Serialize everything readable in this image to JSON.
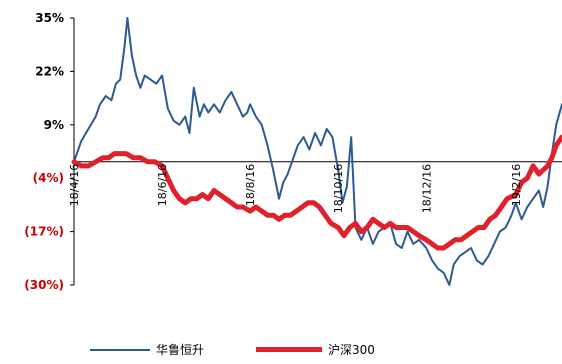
{
  "chart_data": {
    "type": "line",
    "title": "",
    "xlabel": "",
    "ylabel": "",
    "ylim": [
      -30,
      35
    ],
    "yticks": [
      {
        "value": 35,
        "label": "35%",
        "color": "#000000"
      },
      {
        "value": 22,
        "label": "22%",
        "color": "#000000"
      },
      {
        "value": 9,
        "label": "9%",
        "color": "#000000"
      },
      {
        "value": -4,
        "label": "(4%)",
        "color": "#cc0000"
      },
      {
        "value": -17,
        "label": "(17%)",
        "color": "#cc0000"
      },
      {
        "value": -30,
        "label": "(30%)",
        "color": "#cc0000"
      }
    ],
    "xticks": [
      {
        "date": "2018-04-16",
        "label": "18/4/16"
      },
      {
        "date": "2018-06-16",
        "label": "18/6/16"
      },
      {
        "date": "2018-08-16",
        "label": "18/8/16"
      },
      {
        "date": "2018-10-16",
        "label": "18/10/16"
      },
      {
        "date": "2018-12-16",
        "label": "18/12/16"
      },
      {
        "date": "2019-02-16",
        "label": "19/2/16"
      }
    ],
    "xlim": [
      "2018-04-16",
      "2019-03-20"
    ],
    "baseline": 0,
    "grid": false,
    "legend_position": "bottom",
    "series": [
      {
        "name": "华鲁恒升",
        "color": "#2e5a93",
        "width": 2,
        "points": [
          [
            "2018-04-16",
            0
          ],
          [
            "2018-04-21",
            5
          ],
          [
            "2018-04-26",
            8
          ],
          [
            "2018-05-01",
            11
          ],
          [
            "2018-05-04",
            14
          ],
          [
            "2018-05-08",
            16
          ],
          [
            "2018-05-12",
            15
          ],
          [
            "2018-05-15",
            19
          ],
          [
            "2018-05-18",
            20
          ],
          [
            "2018-05-21",
            28
          ],
          [
            "2018-05-23",
            35
          ],
          [
            "2018-05-26",
            26
          ],
          [
            "2018-05-29",
            21
          ],
          [
            "2018-06-01",
            18
          ],
          [
            "2018-06-04",
            21
          ],
          [
            "2018-06-08",
            20
          ],
          [
            "2018-06-12",
            19
          ],
          [
            "2018-06-16",
            21
          ],
          [
            "2018-06-20",
            13
          ],
          [
            "2018-06-24",
            10
          ],
          [
            "2018-06-28",
            9
          ],
          [
            "2018-07-02",
            11
          ],
          [
            "2018-07-05",
            7
          ],
          [
            "2018-07-08",
            18
          ],
          [
            "2018-07-12",
            11
          ],
          [
            "2018-07-15",
            14
          ],
          [
            "2018-07-18",
            12
          ],
          [
            "2018-07-22",
            14
          ],
          [
            "2018-07-26",
            12
          ],
          [
            "2018-07-30",
            15
          ],
          [
            "2018-08-03",
            17
          ],
          [
            "2018-08-07",
            14
          ],
          [
            "2018-08-11",
            11
          ],
          [
            "2018-08-14",
            12
          ],
          [
            "2018-08-16",
            14
          ],
          [
            "2018-08-20",
            11
          ],
          [
            "2018-08-24",
            9
          ],
          [
            "2018-08-28",
            4
          ],
          [
            "2018-09-01",
            -2
          ],
          [
            "2018-09-05",
            -9
          ],
          [
            "2018-09-08",
            -5
          ],
          [
            "2018-09-11",
            -3
          ],
          [
            "2018-09-14",
            0
          ],
          [
            "2018-09-18",
            4
          ],
          [
            "2018-09-22",
            6
          ],
          [
            "2018-09-26",
            3
          ],
          [
            "2018-09-30",
            7
          ],
          [
            "2018-10-04",
            4
          ],
          [
            "2018-10-08",
            8
          ],
          [
            "2018-10-12",
            6
          ],
          [
            "2018-10-16",
            -2
          ],
          [
            "2018-10-19",
            -10
          ],
          [
            "2018-10-22",
            -6
          ],
          [
            "2018-10-25",
            6
          ],
          [
            "2018-10-28",
            -16
          ],
          [
            "2018-11-01",
            -19
          ],
          [
            "2018-11-05",
            -16
          ],
          [
            "2018-11-09",
            -20
          ],
          [
            "2018-11-13",
            -17
          ],
          [
            "2018-11-17",
            -16
          ],
          [
            "2018-11-21",
            -15
          ],
          [
            "2018-11-25",
            -20
          ],
          [
            "2018-11-29",
            -21
          ],
          [
            "2018-12-03",
            -17
          ],
          [
            "2018-12-07",
            -20
          ],
          [
            "2018-12-11",
            -19
          ],
          [
            "2018-12-16",
            -21
          ],
          [
            "2018-12-20",
            -24
          ],
          [
            "2018-12-24",
            -26
          ],
          [
            "2018-12-28",
            -27
          ],
          [
            "2019-01-01",
            -30
          ],
          [
            "2019-01-04",
            -25
          ],
          [
            "2019-01-08",
            -23
          ],
          [
            "2019-01-12",
            -22
          ],
          [
            "2019-01-16",
            -21
          ],
          [
            "2019-01-20",
            -24
          ],
          [
            "2019-01-24",
            -25
          ],
          [
            "2019-01-28",
            -23
          ],
          [
            "2019-02-01",
            -20
          ],
          [
            "2019-02-05",
            -17
          ],
          [
            "2019-02-09",
            -16
          ],
          [
            "2019-02-13",
            -13
          ],
          [
            "2019-02-16",
            -10
          ],
          [
            "2019-02-20",
            -14
          ],
          [
            "2019-02-24",
            -11
          ],
          [
            "2019-02-28",
            -9
          ],
          [
            "2019-03-04",
            -7
          ],
          [
            "2019-03-07",
            -11
          ],
          [
            "2019-03-10",
            -6
          ],
          [
            "2019-03-13",
            2
          ],
          [
            "2019-03-16",
            9
          ],
          [
            "2019-03-20",
            14
          ]
        ]
      },
      {
        "name": "沪深300",
        "color": "#e0202a",
        "width": 5,
        "points": [
          [
            "2018-04-16",
            0
          ],
          [
            "2018-04-21",
            -1
          ],
          [
            "2018-04-26",
            -1
          ],
          [
            "2018-05-01",
            0
          ],
          [
            "2018-05-06",
            1
          ],
          [
            "2018-05-10",
            1
          ],
          [
            "2018-05-14",
            2
          ],
          [
            "2018-05-18",
            2
          ],
          [
            "2018-05-22",
            2
          ],
          [
            "2018-05-27",
            1
          ],
          [
            "2018-06-01",
            1
          ],
          [
            "2018-06-06",
            0
          ],
          [
            "2018-06-11",
            0
          ],
          [
            "2018-06-16",
            -1
          ],
          [
            "2018-06-20",
            -4
          ],
          [
            "2018-06-24",
            -7
          ],
          [
            "2018-06-28",
            -9
          ],
          [
            "2018-07-02",
            -10
          ],
          [
            "2018-07-06",
            -9
          ],
          [
            "2018-07-10",
            -9
          ],
          [
            "2018-07-14",
            -8
          ],
          [
            "2018-07-18",
            -9
          ],
          [
            "2018-07-22",
            -7
          ],
          [
            "2018-07-26",
            -8
          ],
          [
            "2018-07-30",
            -9
          ],
          [
            "2018-08-03",
            -10
          ],
          [
            "2018-08-07",
            -11
          ],
          [
            "2018-08-11",
            -11
          ],
          [
            "2018-08-16",
            -12
          ],
          [
            "2018-08-20",
            -11
          ],
          [
            "2018-08-24",
            -12
          ],
          [
            "2018-08-28",
            -13
          ],
          [
            "2018-09-01",
            -13
          ],
          [
            "2018-09-05",
            -14
          ],
          [
            "2018-09-09",
            -13
          ],
          [
            "2018-09-13",
            -13
          ],
          [
            "2018-09-17",
            -12
          ],
          [
            "2018-09-21",
            -11
          ],
          [
            "2018-09-25",
            -10
          ],
          [
            "2018-09-29",
            -10
          ],
          [
            "2018-10-03",
            -11
          ],
          [
            "2018-10-07",
            -13
          ],
          [
            "2018-10-11",
            -15
          ],
          [
            "2018-10-16",
            -16
          ],
          [
            "2018-10-20",
            -18
          ],
          [
            "2018-10-24",
            -16
          ],
          [
            "2018-10-28",
            -15
          ],
          [
            "2018-11-01",
            -17
          ],
          [
            "2018-11-05",
            -16
          ],
          [
            "2018-11-09",
            -14
          ],
          [
            "2018-11-13",
            -15
          ],
          [
            "2018-11-17",
            -16
          ],
          [
            "2018-11-21",
            -15
          ],
          [
            "2018-11-25",
            -16
          ],
          [
            "2018-11-29",
            -16
          ],
          [
            "2018-12-03",
            -16
          ],
          [
            "2018-12-07",
            -17
          ],
          [
            "2018-12-11",
            -18
          ],
          [
            "2018-12-16",
            -19
          ],
          [
            "2018-12-20",
            -20
          ],
          [
            "2018-12-24",
            -21
          ],
          [
            "2018-12-28",
            -21
          ],
          [
            "2019-01-01",
            -20
          ],
          [
            "2019-01-05",
            -19
          ],
          [
            "2019-01-09",
            -19
          ],
          [
            "2019-01-13",
            -18
          ],
          [
            "2019-01-17",
            -17
          ],
          [
            "2019-01-21",
            -16
          ],
          [
            "2019-01-25",
            -16
          ],
          [
            "2019-01-29",
            -14
          ],
          [
            "2019-02-02",
            -13
          ],
          [
            "2019-02-06",
            -11
          ],
          [
            "2019-02-10",
            -9
          ],
          [
            "2019-02-16",
            -8
          ],
          [
            "2019-02-20",
            -5
          ],
          [
            "2019-02-24",
            -4
          ],
          [
            "2019-02-28",
            -1
          ],
          [
            "2019-03-04",
            -3
          ],
          [
            "2019-03-07",
            -2
          ],
          [
            "2019-03-10",
            -1
          ],
          [
            "2019-03-13",
            1
          ],
          [
            "2019-03-16",
            4
          ],
          [
            "2019-03-20",
            6
          ]
        ]
      }
    ]
  }
}
